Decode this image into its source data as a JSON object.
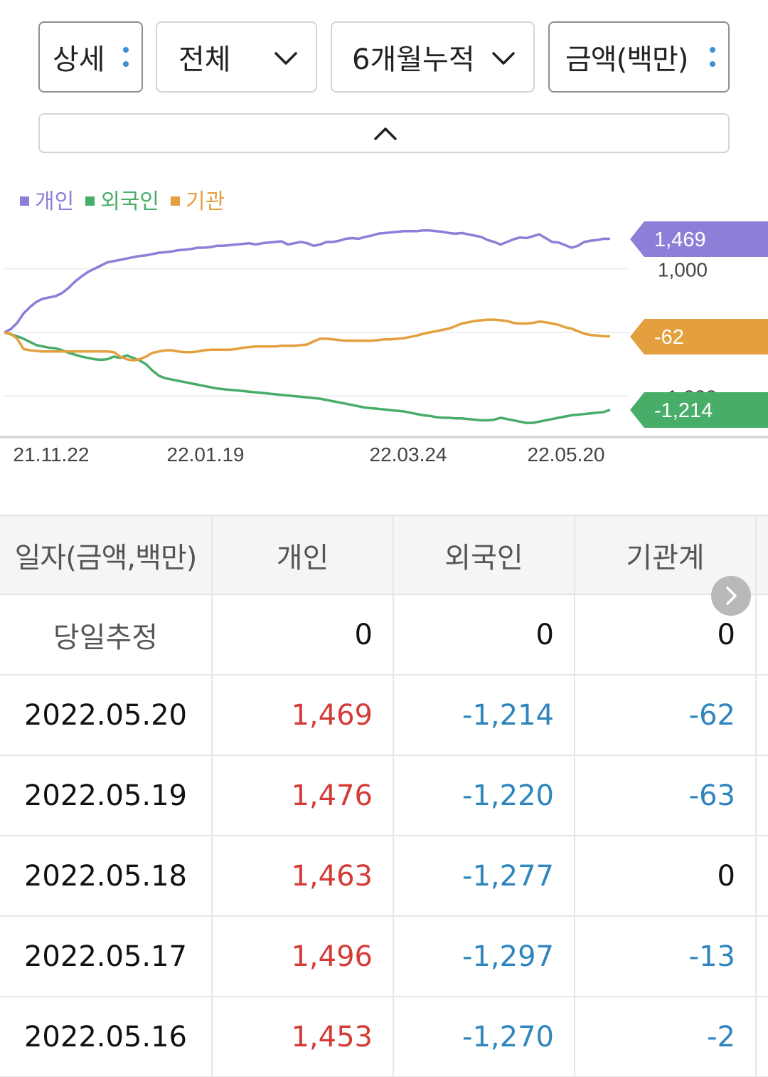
{
  "filters": {
    "detail": "상세",
    "investor": "전체",
    "period": "6개월누적",
    "unit": "금액(백만)"
  },
  "chart_data": {
    "type": "line",
    "legend": [
      "개인",
      "외국인",
      "기관"
    ],
    "legend_position": "top-left",
    "x_tick_labels": [
      "21.11.22",
      "22.01.19",
      "22.03.24",
      "22.05.20"
    ],
    "y_gridlines": [
      1000,
      0,
      -1000
    ],
    "y_tick_labels": [
      "1,000",
      "-1,000"
    ],
    "ylim": [
      -1600,
      1900
    ],
    "end_labels": [
      {
        "series": "개인",
        "text": "1,469",
        "value": 1469
      },
      {
        "series": "기관",
        "text": "-62",
        "value": -62
      },
      {
        "series": "외국인",
        "text": "-1,214",
        "value": -1214
      }
    ],
    "series": [
      {
        "name": "개인",
        "color": "#8d7ed8",
        "values": [
          0,
          50,
          150,
          300,
          400,
          480,
          530,
          550,
          570,
          620,
          700,
          800,
          880,
          950,
          1000,
          1050,
          1100,
          1120,
          1140,
          1160,
          1180,
          1200,
          1210,
          1230,
          1250,
          1260,
          1270,
          1290,
          1300,
          1310,
          1330,
          1330,
          1340,
          1360,
          1360,
          1370,
          1380,
          1390,
          1400,
          1380,
          1400,
          1410,
          1420,
          1430,
          1380,
          1400,
          1420,
          1400,
          1360,
          1380,
          1420,
          1420,
          1440,
          1470,
          1480,
          1470,
          1500,
          1520,
          1550,
          1560,
          1570,
          1580,
          1590,
          1590,
          1590,
          1600,
          1600,
          1590,
          1580,
          1560,
          1550,
          1560,
          1540,
          1520,
          1500,
          1450,
          1420,
          1380,
          1420,
          1460,
          1490,
          1480,
          1510,
          1540,
          1480,
          1420,
          1410,
          1370,
          1330,
          1360,
          1420,
          1440,
          1450,
          1470,
          1469
        ]
      },
      {
        "name": "외국인",
        "color": "#48ad68",
        "values": [
          0,
          -30,
          -60,
          -100,
          -150,
          -200,
          -220,
          -240,
          -250,
          -280,
          -320,
          -350,
          -380,
          -400,
          -420,
          -430,
          -420,
          -380,
          -400,
          -360,
          -400,
          -440,
          -500,
          -600,
          -680,
          -720,
          -740,
          -760,
          -780,
          -800,
          -820,
          -840,
          -860,
          -880,
          -890,
          -900,
          -910,
          -920,
          -930,
          -940,
          -950,
          -960,
          -970,
          -980,
          -990,
          -1000,
          -1010,
          -1020,
          -1030,
          -1040,
          -1060,
          -1080,
          -1100,
          -1120,
          -1140,
          -1160,
          -1180,
          -1190,
          -1200,
          -1210,
          -1220,
          -1230,
          -1240,
          -1260,
          -1280,
          -1300,
          -1310,
          -1330,
          -1340,
          -1340,
          -1350,
          -1350,
          -1360,
          -1370,
          -1380,
          -1380,
          -1370,
          -1340,
          -1360,
          -1380,
          -1400,
          -1420,
          -1420,
          -1400,
          -1380,
          -1360,
          -1340,
          -1320,
          -1300,
          -1290,
          -1280,
          -1270,
          -1260,
          -1250,
          -1214
        ]
      },
      {
        "name": "기관",
        "color": "#e4a03e",
        "values": [
          0,
          -20,
          -100,
          -260,
          -280,
          -290,
          -300,
          -300,
          -300,
          -300,
          -300,
          -300,
          -300,
          -300,
          -300,
          -300,
          -300,
          -310,
          -380,
          -420,
          -440,
          -420,
          -380,
          -320,
          -300,
          -280,
          -280,
          -300,
          -310,
          -310,
          -300,
          -280,
          -270,
          -270,
          -270,
          -270,
          -260,
          -240,
          -230,
          -220,
          -220,
          -220,
          -220,
          -210,
          -210,
          -210,
          -200,
          -190,
          -140,
          -100,
          -100,
          -110,
          -120,
          -130,
          -130,
          -130,
          -130,
          -130,
          -120,
          -110,
          -110,
          -100,
          -90,
          -70,
          -50,
          -20,
          0,
          20,
          40,
          60,
          100,
          140,
          160,
          180,
          190,
          200,
          200,
          190,
          180,
          150,
          140,
          140,
          150,
          170,
          160,
          140,
          120,
          80,
          60,
          20,
          -20,
          -40,
          -50,
          -60,
          -62
        ]
      }
    ]
  },
  "table": {
    "headers": [
      "일자(금액,백만)",
      "개인",
      "외국인",
      "기관계"
    ],
    "rows": [
      {
        "date": "당일추정",
        "individual": "0",
        "foreign": "0",
        "institution": "0",
        "tones": [
          "zero",
          "zero",
          "zero"
        ]
      },
      {
        "date": "2022.05.20",
        "individual": "1,469",
        "foreign": "-1,214",
        "institution": "-62",
        "tones": [
          "pos",
          "neg",
          "neg"
        ]
      },
      {
        "date": "2022.05.19",
        "individual": "1,476",
        "foreign": "-1,220",
        "institution": "-63",
        "tones": [
          "pos",
          "neg",
          "neg"
        ]
      },
      {
        "date": "2022.05.18",
        "individual": "1,463",
        "foreign": "-1,277",
        "institution": "0",
        "tones": [
          "pos",
          "neg",
          "zero"
        ]
      },
      {
        "date": "2022.05.17",
        "individual": "1,496",
        "foreign": "-1,297",
        "institution": "-13",
        "tones": [
          "pos",
          "neg",
          "neg"
        ]
      },
      {
        "date": "2022.05.16",
        "individual": "1,453",
        "foreign": "-1,270",
        "institution": "-2",
        "tones": [
          "pos",
          "neg",
          "neg"
        ]
      }
    ]
  },
  "colors": {
    "positive": "#d43b35",
    "negative": "#2f85bd",
    "individual": "#8d7ed8",
    "foreign": "#48ad68",
    "institution": "#e4a03e"
  },
  "icons": {
    "detail_menu": "more-vertical-icon",
    "unit_menu": "more-vertical-icon",
    "investor_dropdown": "chevron-down-icon",
    "period_dropdown": "chevron-down-icon",
    "collapse": "chevron-up-icon",
    "scroll_right": "chevron-right-icon"
  }
}
